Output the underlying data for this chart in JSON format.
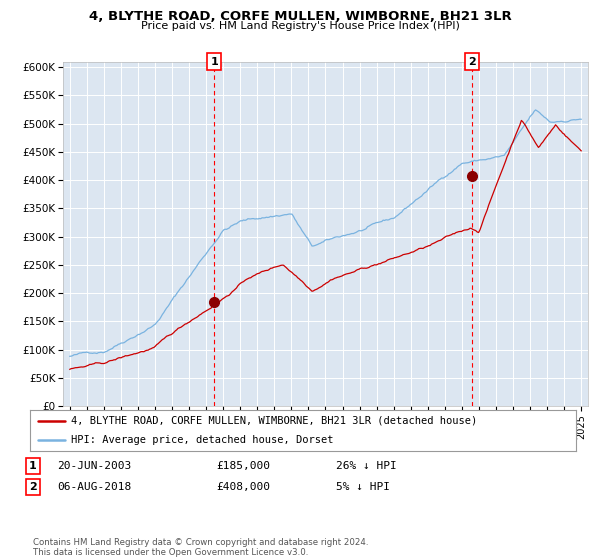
{
  "title": "4, BLYTHE ROAD, CORFE MULLEN, WIMBORNE, BH21 3LR",
  "subtitle": "Price paid vs. HM Land Registry's House Price Index (HPI)",
  "legend_line1": "4, BLYTHE ROAD, CORFE MULLEN, WIMBORNE, BH21 3LR (detached house)",
  "legend_line2": "HPI: Average price, detached house, Dorset",
  "annotation1_label": "1",
  "annotation1_date": "20-JUN-2003",
  "annotation1_price": "£185,000",
  "annotation1_hpi": "26% ↓ HPI",
  "annotation2_label": "2",
  "annotation2_date": "06-AUG-2018",
  "annotation2_price": "£408,000",
  "annotation2_hpi": "5% ↓ HPI",
  "footnote": "Contains HM Land Registry data © Crown copyright and database right 2024.\nThis data is licensed under the Open Government Licence v3.0.",
  "sale1_year": 2003.47,
  "sale1_price": 185000,
  "sale2_year": 2018.59,
  "sale2_price": 408000,
  "hpi_color": "#7ab3e0",
  "price_color": "#cc0000",
  "sale_marker_color": "#8b0000",
  "bg_color": "#dce6f1",
  "grid_color": "#ffffff",
  "outer_bg": "#ffffff",
  "ylim": [
    0,
    610000
  ],
  "yticks": [
    0,
    50000,
    100000,
    150000,
    200000,
    250000,
    300000,
    350000,
    400000,
    450000,
    500000,
    550000,
    600000
  ],
  "xlim_start": 1994.6,
  "xlim_end": 2025.4
}
